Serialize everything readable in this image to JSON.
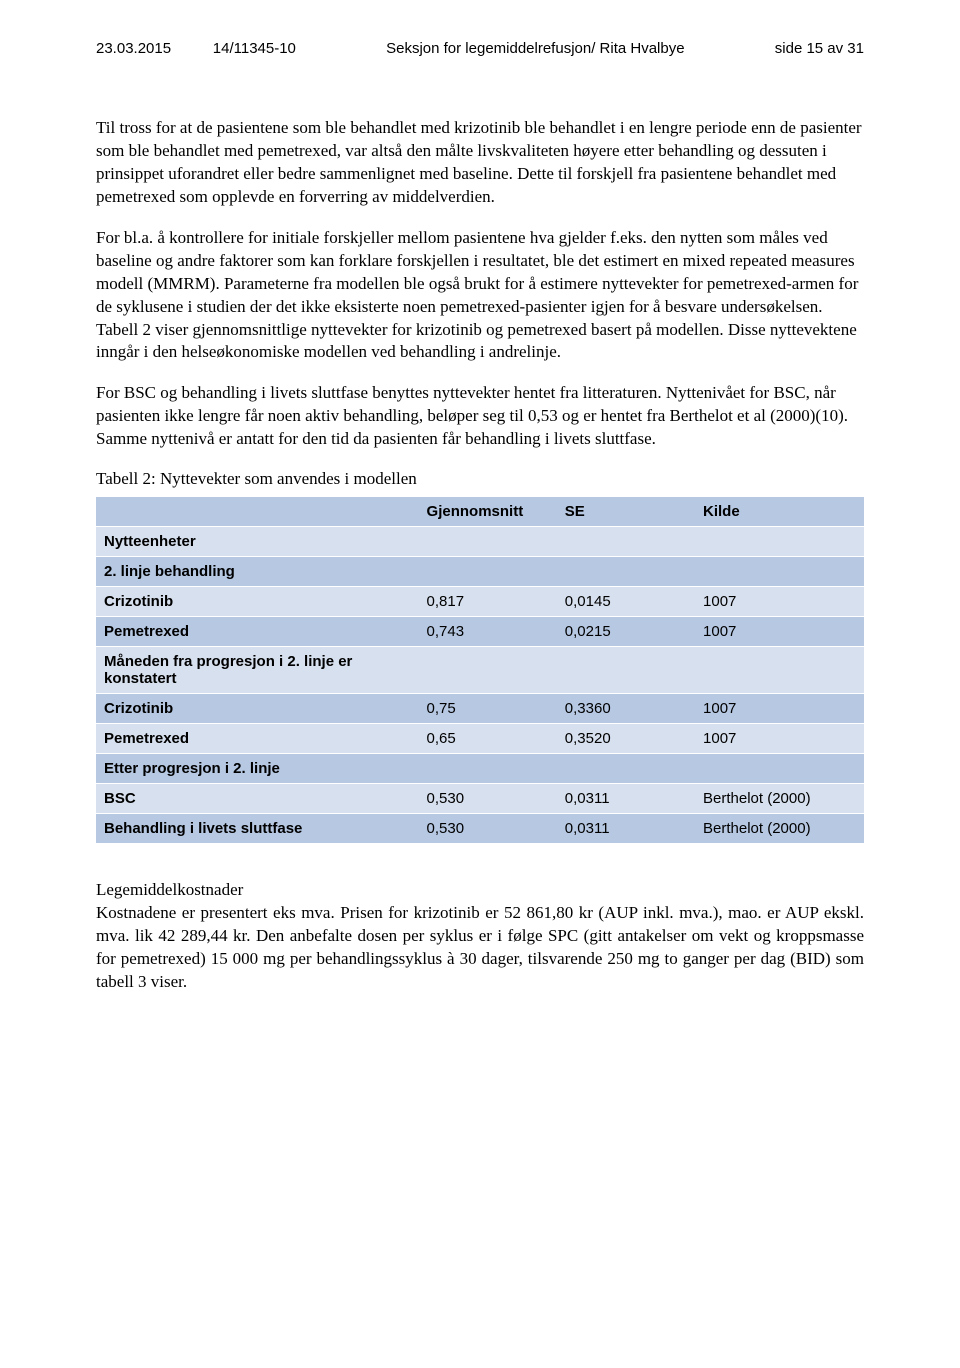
{
  "header": {
    "date": "23.03.2015",
    "ref": "14/11345-10",
    "section": "Seksjon for legemiddelrefusjon/ Rita Hvalbye",
    "page": "side 15 av 31"
  },
  "paragraphs": {
    "p1": "Til tross for at de pasientene som ble behandlet med krizotinib ble behandlet i en lengre periode enn de pasienter som ble behandlet med pemetrexed, var altså den målte livskvaliteten høyere etter behandling og dessuten i prinsippet uforandret eller bedre sammenlignet med baseline. Dette til forskjell fra pasientene behandlet med pemetrexed som opplevde en forverring av middelverdien.",
    "p2": "For bl.a. å kontrollere for initiale forskjeller mellom pasientene hva gjelder f.eks. den nytten som måles ved baseline og andre faktorer som kan forklare forskjellen i resultatet, ble det estimert en mixed repeated measures modell (MMRM). Parameterne fra modellen ble også brukt for å estimere nyttevekter for pemetrexed-armen for de syklusene i studien der det ikke eksisterte noen pemetrexed-pasienter igjen for å besvare undersøkelsen. Tabell 2 viser gjennomsnittlige nyttevekter for krizotinib og pemetrexed basert på modellen. Disse nyttevektene inngår i den helseøkonomiske modellen ved behandling i andrelinje.",
    "p3": "For BSC og behandling i livets sluttfase benyttes nyttevekter hentet fra litteraturen. Nyttenivået for BSC, når pasienten ikke lengre får noen aktiv behandling, beløper seg til 0,53 og er hentet fra Berthelot et al (2000)(10). Samme nyttenivå er antatt for den tid da pasienten får behandling i livets sluttfase."
  },
  "table": {
    "caption": "Tabell 2: Nyttevekter som anvendes i modellen",
    "columns": {
      "c1": "",
      "c2": "Gjennomsnitt",
      "c3": "SE",
      "c4": "Kilde"
    },
    "sections": {
      "s0": "Nytteenheter",
      "s1": "2. linje behandling",
      "r1": {
        "label": "Crizotinib",
        "v1": "0,817",
        "v2": "0,0145",
        "v3": "1007"
      },
      "r2": {
        "label": "Pemetrexed",
        "v1": "0,743",
        "v2": "0,0215",
        "v3": "1007"
      },
      "s2": "Måneden  fra progresjon i 2. linje er konstatert",
      "r3": {
        "label": "Crizotinib",
        "v1": "0,75",
        "v2": "0,3360",
        "v3": "1007"
      },
      "r4": {
        "label": "Pemetrexed",
        "v1": "0,65",
        "v2": "0,3520",
        "v3": "1007"
      },
      "s3": "Etter progresjon i 2. linje",
      "r5": {
        "label": "BSC",
        "v1": "0,530",
        "v2": "0,0311",
        "v3": "Berthelot (2000)"
      },
      "r6": {
        "label": "Behandling i livets sluttfase",
        "v1": "0,530",
        "v2": "0,0311",
        "v3": "Berthelot (2000)"
      }
    },
    "colors": {
      "header_row": "#b6c8e2",
      "light_row": "#d7e0ee",
      "border": "#ffffff",
      "text": "#000000"
    }
  },
  "costs": {
    "title": "Legemiddelkostnader",
    "text": "Kostnadene er presentert eks mva. Prisen for krizotinib er 52 861,80 kr (AUP inkl. mva.), mao. er AUP ekskl. mva. lik 42 289,44 kr. Den anbefalte dosen per syklus er i følge SPC (gitt antakelser om vekt og kroppsmasse for pemetrexed) 15 000 mg per behandlingssyklus à 30 dager, tilsvarende 250 mg to ganger per dag (BID) som tabell 3 viser."
  }
}
